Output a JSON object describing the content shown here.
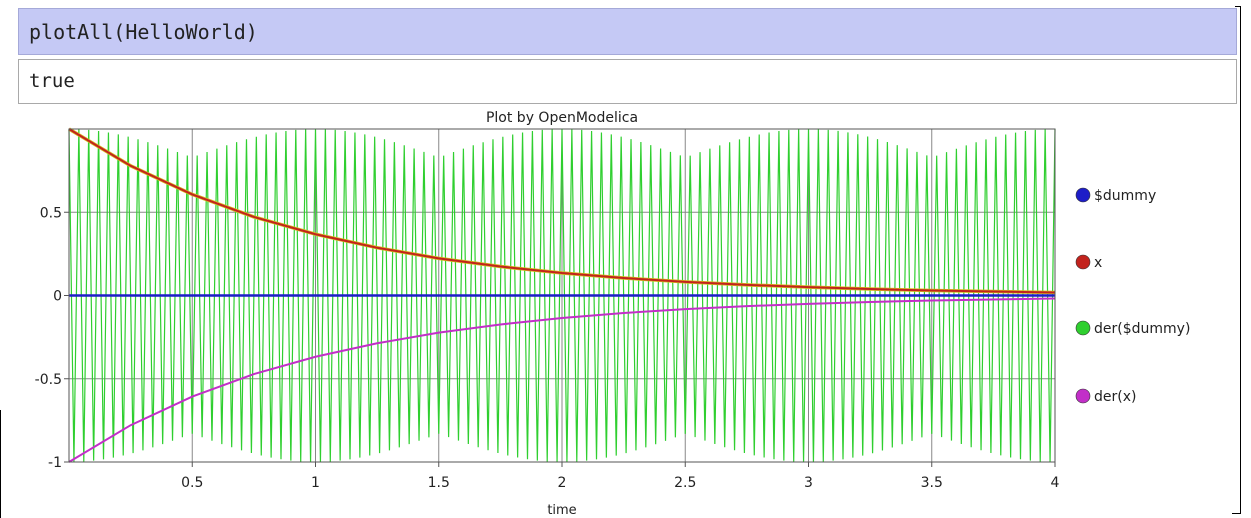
{
  "cells": {
    "input_code": "plotAll(HelloWorld)",
    "output_text": "true"
  },
  "chart_data": {
    "type": "line",
    "title": "Plot by OpenModelica",
    "xlabel": "time",
    "ylabel": "",
    "xlim": [
      0,
      4
    ],
    "ylim": [
      -1,
      1
    ],
    "grid": true,
    "legend_position": "right",
    "x_ticks": [
      "0.5",
      "1",
      "1.5",
      "2",
      "2.5",
      "3",
      "3.5",
      "4"
    ],
    "y_ticks": [
      "0.5",
      "0",
      "-0.5",
      "-1"
    ],
    "x_tick_values": [
      0.5,
      1,
      1.5,
      2,
      2.5,
      3,
      3.5,
      4
    ],
    "y_tick_values": [
      0.5,
      0,
      -0.5,
      -1
    ],
    "series": [
      {
        "name": "$dummy",
        "color": "#1d1dc8",
        "x": [
          0,
          0.5,
          1,
          1.5,
          2,
          2.5,
          3,
          3.5,
          4
        ],
        "values": [
          0,
          0,
          0,
          0,
          0,
          0,
          0,
          0,
          0
        ]
      },
      {
        "name": "x",
        "color": "#c2231d",
        "x": [
          0,
          0.25,
          0.5,
          0.75,
          1,
          1.25,
          1.5,
          1.75,
          2,
          2.25,
          2.5,
          2.75,
          3,
          3.25,
          3.5,
          3.75,
          4
        ],
        "values": [
          1,
          0.779,
          0.607,
          0.472,
          0.368,
          0.287,
          0.223,
          0.174,
          0.135,
          0.105,
          0.082,
          0.064,
          0.05,
          0.039,
          0.03,
          0.024,
          0.018
        ]
      },
      {
        "name": "der($dummy)",
        "color": "#2fcf2f",
        "note_style": "oscillation",
        "x_start": 0,
        "x_end": 4,
        "cycles": 100,
        "amplitude_max": 1,
        "amplitude_min": 0.83
      },
      {
        "name": "der(x)",
        "color": "#c22fc8",
        "x": [
          0,
          0.25,
          0.5,
          0.75,
          1,
          1.25,
          1.5,
          1.75,
          2,
          2.25,
          2.5,
          2.75,
          3,
          3.25,
          3.5,
          3.75,
          4
        ],
        "values": [
          -1,
          -0.779,
          -0.607,
          -0.472,
          -0.368,
          -0.287,
          -0.223,
          -0.174,
          -0.135,
          -0.105,
          -0.082,
          -0.064,
          -0.05,
          -0.039,
          -0.03,
          -0.024,
          -0.018
        ]
      }
    ]
  }
}
